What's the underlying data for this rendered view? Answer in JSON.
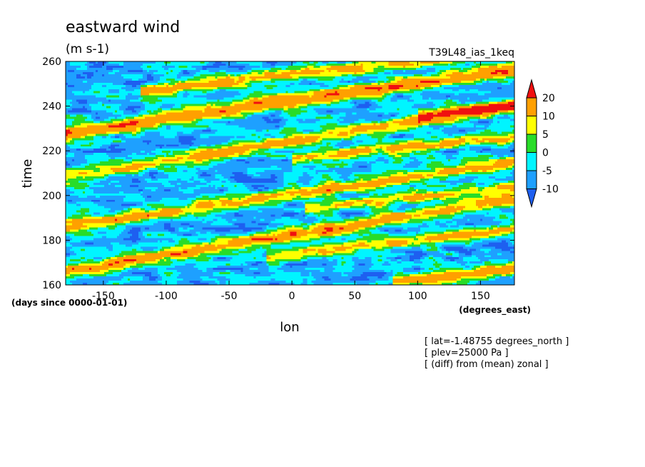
{
  "chart_data": {
    "type": "heatmap",
    "title": "eastward wind",
    "units": "(m s-1)",
    "run_label": "T39L48_ias_1keq",
    "xlabel": "lon",
    "ylabel": "time",
    "x_units": "(degrees_east)",
    "y_units": "(days since 0000-01-01)",
    "xlim": [
      -180,
      177
    ],
    "ylim": [
      160,
      260
    ],
    "x_ticks": [
      -150,
      -100,
      -50,
      0,
      50,
      100,
      150
    ],
    "y_ticks": [
      160,
      180,
      200,
      220,
      240,
      260
    ],
    "colorbar": {
      "labels": [
        "20",
        "10",
        "5",
        "0",
        "-5",
        "-10"
      ],
      "levels": [
        -10,
        -5,
        0,
        5,
        10,
        20
      ],
      "colors": [
        "#1e5ff0",
        "#1ea0ff",
        "#00f5ff",
        "#28dc28",
        "#ffff00",
        "#ffa000",
        "#f01010"
      ],
      "extend": "both"
    },
    "bands": [
      {
        "lon_start": -180,
        "time_start": 166,
        "slope": 0.09,
        "width": 3.0,
        "amp": 22
      },
      {
        "lon_start": -180,
        "time_start": 186,
        "slope": 0.08,
        "width": 3.0,
        "amp": 20
      },
      {
        "lon_start": -180,
        "time_start": 208,
        "slope": 0.09,
        "width": 3.0,
        "amp": 18
      },
      {
        "lon_start": -180,
        "time_start": 228,
        "slope": 0.08,
        "width": 3.2,
        "amp": 24
      },
      {
        "lon_start": -100,
        "time_start": 248,
        "slope": 0.06,
        "width": 2.8,
        "amp": 18
      },
      {
        "lon_start": 0,
        "time_start": 174,
        "slope": 0.06,
        "width": 2.6,
        "amp": 18
      },
      {
        "lon_start": 30,
        "time_start": 195,
        "slope": 0.06,
        "width": 2.6,
        "amp": 16
      },
      {
        "lon_start": 20,
        "time_start": 217,
        "slope": 0.06,
        "width": 2.6,
        "amp": 18
      },
      {
        "lon_start": 100,
        "time_start": 162,
        "slope": 0.07,
        "width": 2.6,
        "amp": 20
      },
      {
        "lon_start": 120,
        "time_start": 237,
        "slope": 0.06,
        "width": 2.4,
        "amp": 18
      }
    ],
    "background": -6
  },
  "annotations": [
    "[ lat=-1.48755 degrees_north ]",
    "[ plev=25000 Pa ]",
    "[ (diff) from (mean) zonal ]"
  ]
}
